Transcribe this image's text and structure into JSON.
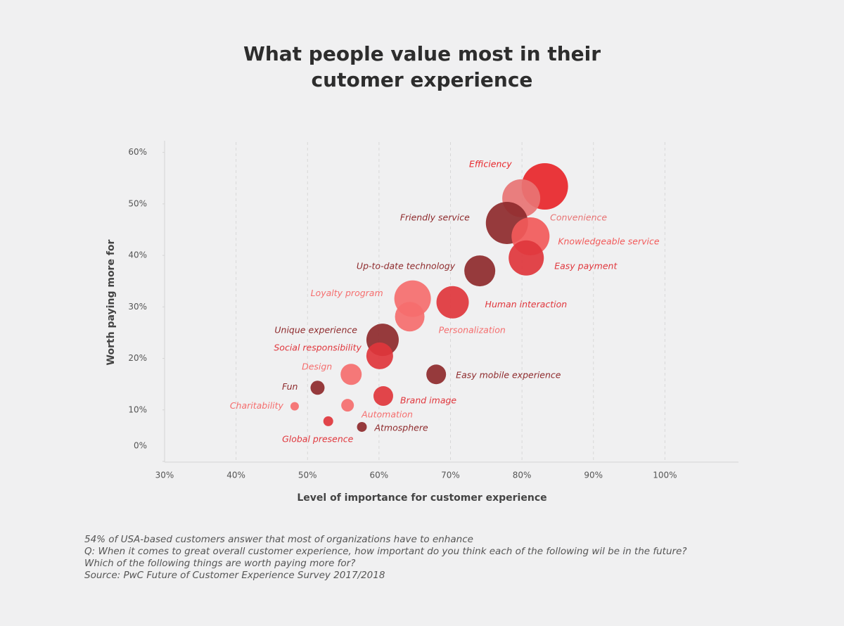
{
  "chart_data": {
    "type": "bubble",
    "title_lines": [
      "What people value most in their",
      "cutomer experience"
    ],
    "x_label": "Level of importance for customer experience",
    "y_label": "Worth paying more for",
    "xlim": [
      30,
      110
    ],
    "ylim": [
      0,
      62
    ],
    "xticks": [
      {
        "value": 30,
        "label": "30%"
      },
      {
        "value": 40,
        "label": "40%"
      },
      {
        "value": 50,
        "label": "50%"
      },
      {
        "value": 60,
        "label": "60%"
      },
      {
        "value": 70,
        "label": "70%"
      },
      {
        "value": 80,
        "label": "80%"
      },
      {
        "value": 90,
        "label": "90%"
      },
      {
        "value": 100,
        "label": "100%"
      }
    ],
    "yticks": [
      {
        "value": 0,
        "label": "0%"
      },
      {
        "value": 10,
        "label": "10%"
      },
      {
        "value": 20,
        "label": "20%"
      },
      {
        "value": 30,
        "label": "30%"
      },
      {
        "value": 40,
        "label": "40%"
      },
      {
        "value": 50,
        "label": "50%"
      },
      {
        "value": 60,
        "label": "60%"
      }
    ],
    "grid": true,
    "points": [
      {
        "label": "Efficiency",
        "x": 83.2,
        "y": 53.4,
        "size": 33,
        "color": "#e8262a"
      },
      {
        "label": "Convenience",
        "x": 79.9,
        "y": 51.1,
        "size": 27,
        "color": "#e87474"
      },
      {
        "label": "Friendly service",
        "x": 77.9,
        "y": 46.3,
        "size": 30,
        "color": "#8e2a2c"
      },
      {
        "label": "Knowledgeable service",
        "x": 81.2,
        "y": 43.7,
        "size": 27,
        "color": "#f25a5a"
      },
      {
        "label": "Easy payment",
        "x": 80.6,
        "y": 39.5,
        "size": 25,
        "color": "#e0363c"
      },
      {
        "label": "Up-to-date technology",
        "x": 74.1,
        "y": 37.0,
        "size": 22,
        "color": "#8e2a2c"
      },
      {
        "label": "Loyalty program",
        "x": 64.7,
        "y": 31.6,
        "size": 26,
        "color": "#f56e6e"
      },
      {
        "label": "Human interaction",
        "x": 70.3,
        "y": 30.9,
        "size": 23,
        "color": "#e0363c"
      },
      {
        "label": "Personalization",
        "x": 64.3,
        "y": 28.1,
        "size": 21,
        "color": "#f56e6e"
      },
      {
        "label": "Unique experience",
        "x": 60.5,
        "y": 23.6,
        "size": 23,
        "color": "#8e2a2c"
      },
      {
        "label": "Social responsibility",
        "x": 60.1,
        "y": 20.5,
        "size": 19,
        "color": "#e0363c"
      },
      {
        "label": "Design",
        "x": 56.1,
        "y": 16.9,
        "size": 15,
        "color": "#f56e6e"
      },
      {
        "label": "Easy mobile experience",
        "x": 68.0,
        "y": 16.9,
        "size": 14,
        "color": "#8e2a2c"
      },
      {
        "label": "Fun",
        "x": 51.4,
        "y": 14.3,
        "size": 10,
        "color": "#8e2a2c"
      },
      {
        "label": "Brand image",
        "x": 60.6,
        "y": 12.7,
        "size": 14,
        "color": "#e0363c"
      },
      {
        "label": "Charitability",
        "x": 48.2,
        "y": 10.7,
        "size": 6,
        "color": "#f56e6e"
      },
      {
        "label": "Automation",
        "x": 55.6,
        "y": 10.9,
        "size": 9,
        "color": "#f56e6e"
      },
      {
        "label": "Global presence",
        "x": 52.9,
        "y": 7.8,
        "size": 7,
        "color": "#e0363c"
      },
      {
        "label": "Atmosphere",
        "x": 57.6,
        "y": 6.7,
        "size": 7,
        "color": "#8e2a2c"
      }
    ],
    "notes": [
      "54% of USA-based customers answer that most of organizations have to enhance",
      "Q: When it comes to great overall customer experience, how important do you think each of the following wil be in the future?",
      "Which of the following things are worth paying more for?",
      "Source: PwC Future of Customer Experience Survey 2017/2018"
    ]
  }
}
